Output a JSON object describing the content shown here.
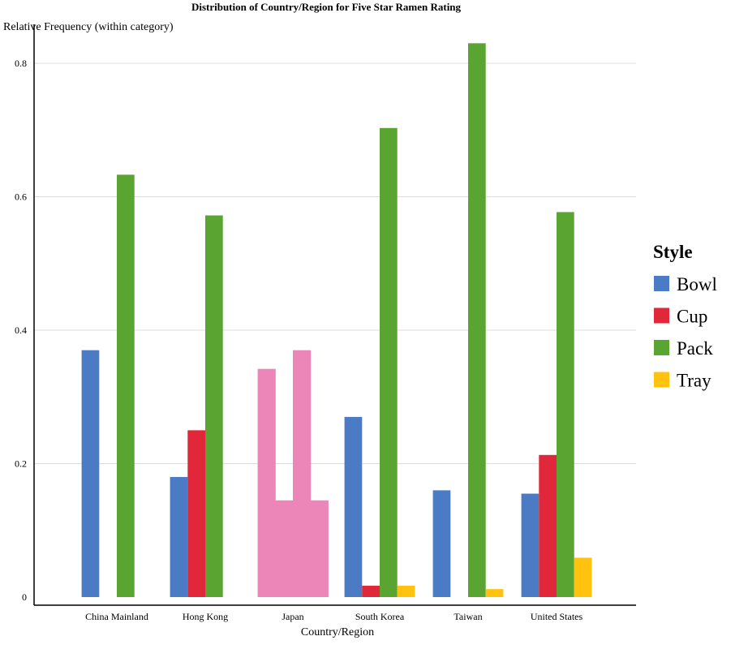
{
  "chart_data": {
    "type": "bar",
    "title": "Distribution of Country/Region for Five Star Ramen Rating",
    "xlabel": "Country/Region",
    "ylabel": "Relative Frequency (within category)",
    "ylim": [
      0,
      0.84
    ],
    "yticks": [
      0,
      0.2,
      0.4,
      0.6,
      0.8
    ],
    "ytick_labels": [
      "0",
      "0.2",
      "0.4",
      "0.6",
      "0.8"
    ],
    "grid": true,
    "categories": [
      "China Mainland",
      "Hong Kong",
      "Japan",
      "South Korea",
      "Taiwan",
      "United States"
    ],
    "legend": {
      "title": "Style",
      "position": "right"
    },
    "series": [
      {
        "name": "Bowl",
        "color": "#4a7bc4",
        "values": [
          0.37,
          0.18,
          null,
          0.27,
          0.16,
          0.155
        ]
      },
      {
        "name": "Cup",
        "color": "#e0283a",
        "values": [
          null,
          0.25,
          null,
          0.017,
          null,
          0.213
        ]
      },
      {
        "name": "Pack",
        "color": "#5aa532",
        "values": [
          0.633,
          0.572,
          null,
          0.703,
          0.83,
          0.577
        ]
      },
      {
        "name": "Tray",
        "color": "#ffc20e",
        "values": [
          null,
          null,
          null,
          0.017,
          0.012,
          0.059
        ]
      }
    ],
    "extra_bars": [
      {
        "category": "Japan",
        "name": "Japan bar 1",
        "color": "#ec86b8",
        "value": 0.342
      },
      {
        "category": "Japan",
        "name": "Japan bar 2",
        "color": "#ec86b8",
        "value": 0.145
      },
      {
        "category": "Japan",
        "name": "Japan bar 3",
        "color": "#ec86b8",
        "value": 0.37
      },
      {
        "category": "Japan",
        "name": "Japan bar 4",
        "color": "#ec86b8",
        "value": 0.145
      }
    ]
  }
}
